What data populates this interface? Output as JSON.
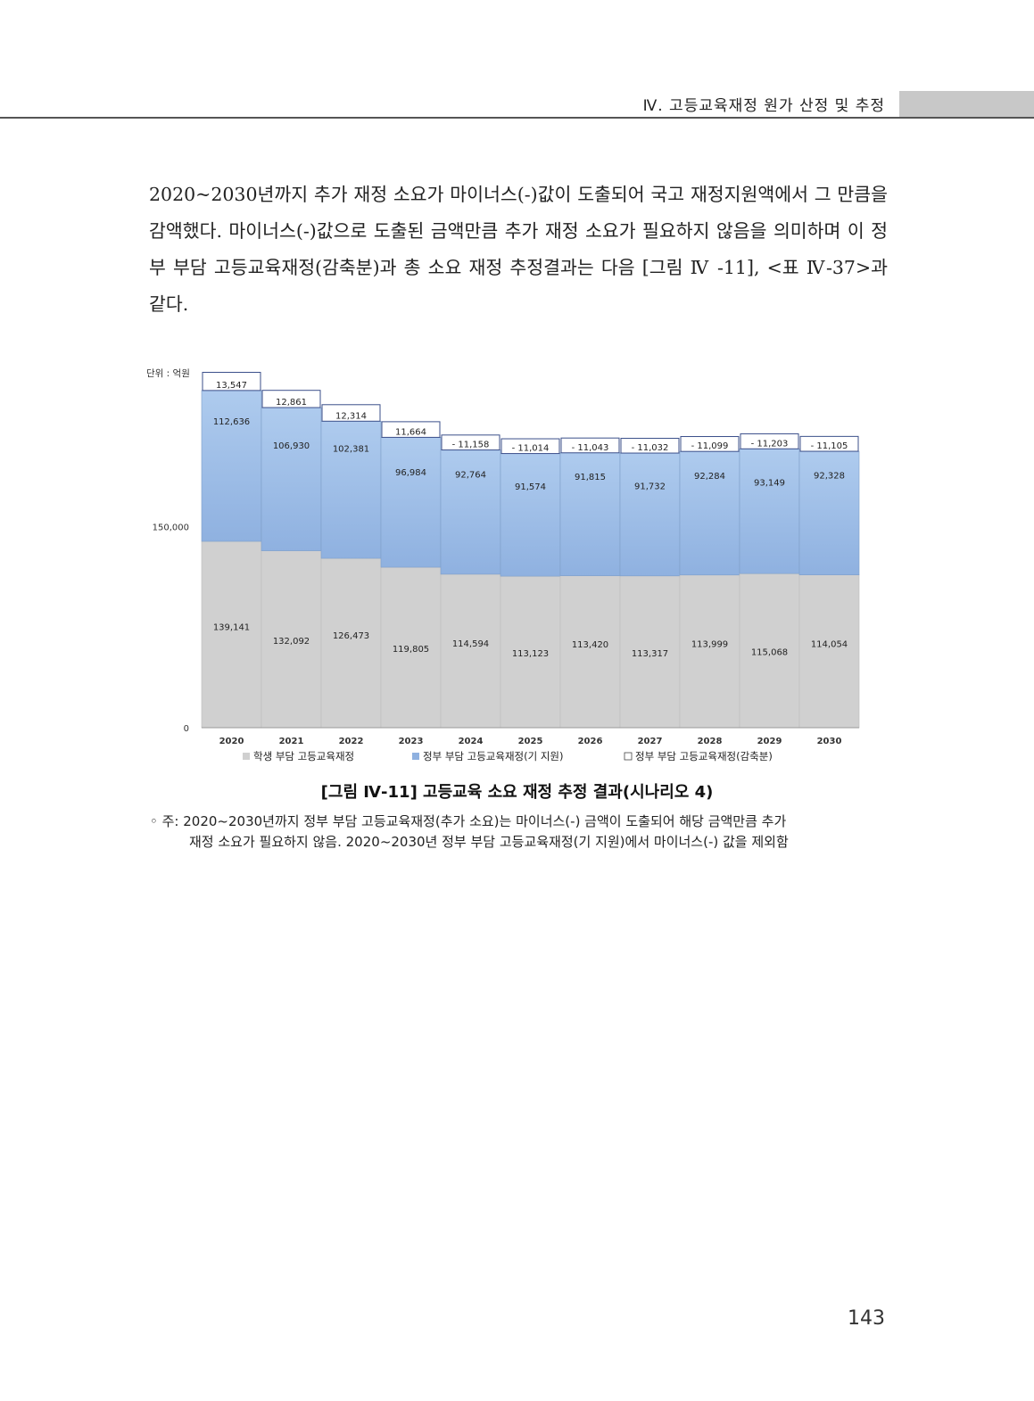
{
  "header": {
    "section_title": "Ⅳ. 고등교육재정 원가 산정 및 추정"
  },
  "body": {
    "paragraph": "2020~2030년까지 추가 재정 소요가 마이너스(-)값이 도출되어 국고 재정지원액에서 그 만큼을 감액했다. 마이너스(-)값으로 도출된 금액만큼 추가 재정 소요가 필요하지 않음을 의미하며 이 정부 부담 고등교육재정(감축분)과 총 소요 재정 추정결과는 다음 [그림 Ⅳ -11], <표 Ⅳ-37>과 같다."
  },
  "figure": {
    "caption": "[그림 Ⅳ-11] 고등교육 소요 재정 추정 결과(시나리오 4)",
    "note_line1": "◦ 주: 2020~2030년까지 정부 부담 고등교육재정(추가 소요)는 마이너스(-) 금액이 도출되어 해당 금액만큼 추가",
    "note_line2": "재정 소요가 필요하지 않음. 2020~2030년 정부 부담 고등교육재정(기 지원)에서 마이너스(-) 값을 제외함"
  },
  "chart_data": {
    "type": "bar",
    "stacked": true,
    "unit_label": "단위 : 억원",
    "categories": [
      "2020",
      "2021",
      "2022",
      "2023",
      "2024",
      "2025",
      "2026",
      "2027",
      "2028",
      "2029",
      "2030"
    ],
    "y_ticks": [
      0,
      150000
    ],
    "ylim": [
      0,
      265000
    ],
    "legend_position": "bottom",
    "series": [
      {
        "name": "학생 부담 고등교육재정",
        "color": "#d0d0d0",
        "values": [
          139141,
          132092,
          126473,
          119805,
          114594,
          113123,
          113420,
          113317,
          113999,
          115068,
          114054
        ],
        "labels": [
          "139,141",
          "132,092",
          "126,473",
          "119,805",
          "114,594",
          "113,123",
          "113,420",
          "113,317",
          "113,999",
          "115,068",
          "114,054"
        ]
      },
      {
        "name": "정부 부담 고등교육재정(기 지원)",
        "color": "#9dbde6",
        "values": [
          112636,
          106930,
          102381,
          96984,
          92764,
          91574,
          91815,
          91732,
          92284,
          93149,
          92328
        ],
        "labels": [
          "112,636",
          "106,930",
          "102,381",
          "96,984",
          "92,764",
          "91,574",
          "91,815",
          "91,732",
          "92,284",
          "93,149",
          "92,328"
        ]
      },
      {
        "name": "정부 부담 고등교육재정(감축분)",
        "color": "#ffffff",
        "values": [
          13547,
          12861,
          12314,
          11664,
          -11158,
          -11014,
          -11043,
          -11032,
          -11099,
          -11203,
          -11105
        ],
        "labels": [
          "13,547",
          "12,861",
          "12,314",
          "11,664",
          "- 11,158",
          "- 11,014",
          "- 11,043",
          "- 11,032",
          "- 11,099",
          "- 11,203",
          "- 11,105"
        ]
      }
    ]
  },
  "page": {
    "number": "143"
  }
}
